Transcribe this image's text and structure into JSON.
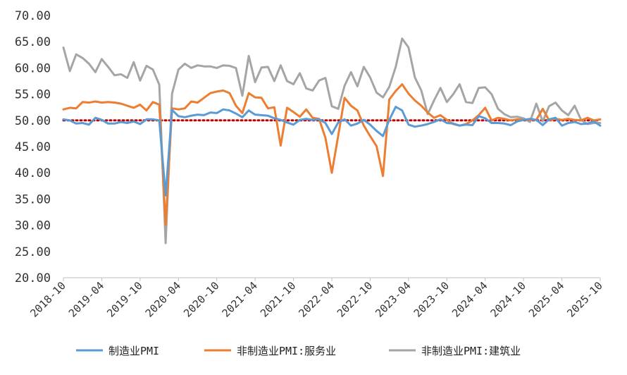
{
  "chart_data": {
    "type": "line",
    "title": "",
    "xlabel": "",
    "ylabel": "",
    "ylim": [
      20,
      70
    ],
    "y_ticks": [
      "70.00",
      "65.00",
      "60.00",
      "55.00",
      "50.00",
      "45.00",
      "40.00",
      "35.00",
      "30.00",
      "25.00",
      "20.00"
    ],
    "y_tick_values": [
      70,
      65,
      60,
      55,
      50,
      45,
      40,
      35,
      30,
      25,
      20
    ],
    "x_tick_labels": [
      "2018-10",
      "2019-04",
      "2019-10",
      "2020-04",
      "2020-10",
      "2021-04",
      "2021-10",
      "2022-04",
      "2022-10",
      "2023-04",
      "2023-10",
      "2024-04",
      "2024-10",
      "2025-04",
      "2025-10"
    ],
    "x_tick_index": [
      0,
      6,
      12,
      18,
      24,
      30,
      36,
      42,
      48,
      54,
      60,
      66,
      72,
      78,
      84
    ],
    "x_start": "2018-10",
    "n_points": 85,
    "reference_line": {
      "value": 50,
      "style": "dotted",
      "color": "#c00000"
    },
    "legend_position": "bottom",
    "series": [
      {
        "name": "制造业PMI",
        "color": "#5b9bd5",
        "values": [
          50.2,
          50.0,
          49.4,
          49.5,
          49.2,
          50.5,
          50.1,
          49.4,
          49.4,
          49.7,
          49.5,
          49.8,
          49.3,
          50.2,
          50.2,
          50.0,
          35.7,
          52.0,
          50.8,
          50.6,
          50.9,
          51.1,
          51.0,
          51.5,
          51.4,
          52.1,
          51.9,
          51.3,
          50.6,
          51.9,
          51.1,
          51.0,
          50.9,
          50.4,
          50.1,
          49.6,
          49.2,
          50.1,
          50.3,
          50.1,
          50.2,
          49.5,
          47.4,
          49.6,
          50.2,
          49.0,
          49.4,
          50.1,
          49.2,
          48.0,
          47.0,
          50.1,
          52.6,
          51.9,
          49.2,
          48.8,
          49.0,
          49.3,
          49.7,
          50.2,
          49.5,
          49.4,
          49.0,
          49.2,
          49.1,
          50.8,
          50.4,
          49.5,
          49.5,
          49.4,
          49.1,
          49.8,
          50.1,
          50.3,
          50.1,
          49.1,
          50.2,
          50.5,
          49.0,
          49.5,
          49.7,
          49.3,
          49.4,
          49.8,
          49.0
        ]
      },
      {
        "name": "非制造业PMI:服务业",
        "color": "#ed7d31",
        "values": [
          52.1,
          52.4,
          52.3,
          53.5,
          53.4,
          53.6,
          53.4,
          53.5,
          53.4,
          53.2,
          52.8,
          52.4,
          53.0,
          51.9,
          53.5,
          53.0,
          30.1,
          52.3,
          52.1,
          52.3,
          53.6,
          53.4,
          54.3,
          55.2,
          55.5,
          55.7,
          55.2,
          52.8,
          51.4,
          55.2,
          54.4,
          54.3,
          52.3,
          52.5,
          45.2,
          52.4,
          51.6,
          50.7,
          52.1,
          50.5,
          50.3,
          46.7,
          40.0,
          47.1,
          54.3,
          52.8,
          51.9,
          49.0,
          47.0,
          45.1,
          39.4,
          54.0,
          55.6,
          56.9,
          55.1,
          53.8,
          52.8,
          51.5,
          50.5,
          51.0,
          50.1,
          49.3,
          49.0,
          49.3,
          50.0,
          51.0,
          52.4,
          50.0,
          50.5,
          50.3,
          50.0,
          50.2,
          50.1,
          50.1,
          50.1,
          52.2,
          50.0,
          50.3,
          50.1,
          50.3,
          50.1,
          50.0,
          50.5,
          50.0,
          50.2
        ]
      },
      {
        "name": "非制造业PMI:建筑业",
        "color": "#a5a5a5",
        "values": [
          63.9,
          59.4,
          62.6,
          61.9,
          60.8,
          59.2,
          61.7,
          60.2,
          58.6,
          58.8,
          58.1,
          61.1,
          57.6,
          60.4,
          59.7,
          56.8,
          26.6,
          55.1,
          59.7,
          60.8,
          60.0,
          60.5,
          60.3,
          60.3,
          60.0,
          60.5,
          60.4,
          60.0,
          54.7,
          62.3,
          57.3,
          60.1,
          60.2,
          57.5,
          60.5,
          57.5,
          56.9,
          59.0,
          56.1,
          55.7,
          57.6,
          58.1,
          52.7,
          52.2,
          56.6,
          59.2,
          56.5,
          60.2,
          58.2,
          55.3,
          54.4,
          56.4,
          60.2,
          65.6,
          63.9,
          58.2,
          55.7,
          51.2,
          53.8,
          56.2,
          53.5,
          55.0,
          56.9,
          53.5,
          53.3,
          56.2,
          56.3,
          55.0,
          52.2,
          51.2,
          50.6,
          50.7,
          50.4,
          49.7,
          53.2,
          49.8,
          52.7,
          53.4,
          51.9,
          51.0,
          52.8,
          50.1,
          49.3,
          49.5,
          49.5
        ]
      }
    ]
  }
}
